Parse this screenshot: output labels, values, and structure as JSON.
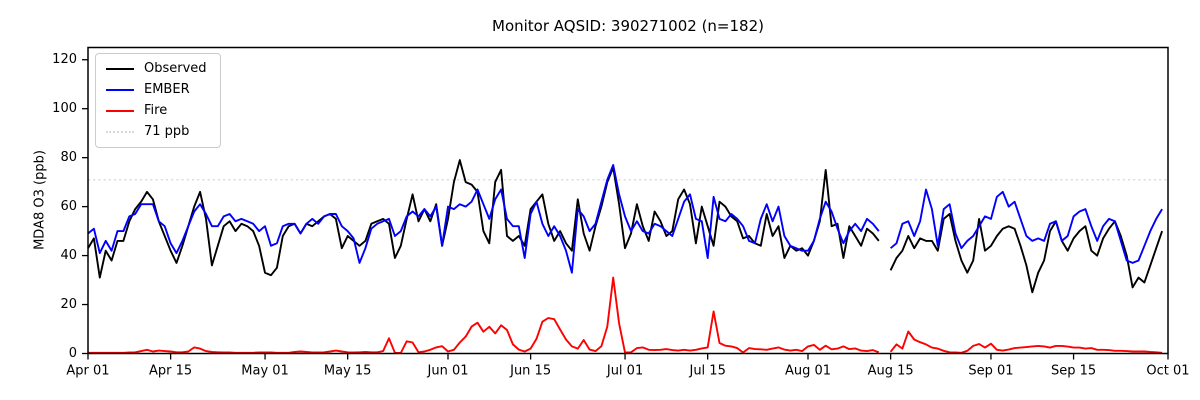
{
  "chart_data": {
    "type": "line",
    "title": "Monitor AQSID: 390271002 (n=182)",
    "xlabel": "",
    "ylabel": "MDA8 O3 (ppb)",
    "ylim": [
      0,
      125
    ],
    "y_ticks": [
      0,
      20,
      40,
      60,
      80,
      100,
      120
    ],
    "x_axis": {
      "start_date": "Apr 01",
      "end_date": "Oct 01",
      "total_days": 183,
      "tick_days": [
        0,
        14,
        30,
        44,
        61,
        75,
        91,
        105,
        122,
        136,
        153,
        167,
        183
      ],
      "tick_labels": [
        "Apr 01",
        "Apr 15",
        "May 01",
        "May 15",
        "Jun 01",
        "Jun 15",
        "Jul 01",
        "Jul 15",
        "Aug 01",
        "Aug 15",
        "Sep 01",
        "Sep 15",
        "Oct 01"
      ]
    },
    "grid": "off",
    "legend_position": "upper left",
    "reference_line": {
      "value": 71,
      "label": "71 ppb",
      "color": "#d9d9d9",
      "style": "dotted"
    },
    "series": [
      {
        "name": "Observed",
        "color": "#000000",
        "values": [
          43,
          47,
          31,
          42,
          38,
          46,
          46,
          54,
          59,
          62,
          66,
          63,
          54,
          48,
          42,
          37,
          44,
          52,
          60,
          66,
          55,
          36,
          44,
          52,
          54,
          50,
          53,
          52,
          50,
          44,
          33,
          32,
          35,
          48,
          52,
          53,
          49,
          53,
          52,
          54,
          56,
          57,
          55,
          43,
          48,
          46,
          44,
          46,
          53,
          54,
          55,
          53,
          39,
          44,
          55,
          65,
          54,
          59,
          54,
          61,
          44,
          55,
          70,
          79,
          70,
          69,
          66,
          50,
          45,
          70,
          75,
          48,
          46,
          48,
          44,
          59,
          62,
          65,
          53,
          46,
          50,
          45,
          42,
          63,
          49,
          42,
          52,
          60,
          70,
          76,
          61,
          43,
          49,
          61,
          52,
          46,
          58,
          54,
          48,
          50,
          63,
          67,
          61,
          45,
          60,
          52,
          44,
          62,
          60,
          56,
          54,
          47,
          48,
          45,
          44,
          57,
          48,
          52,
          39,
          44,
          42,
          43,
          40,
          46,
          54,
          75,
          52,
          53,
          39,
          52,
          48,
          44,
          51,
          49,
          46,
          null,
          34,
          39,
          42,
          48,
          43,
          47,
          46,
          46,
          42,
          55,
          57,
          46,
          38,
          33,
          38,
          55,
          42,
          44,
          48,
          51,
          52,
          51,
          44,
          36,
          25,
          33,
          38,
          50,
          54,
          46,
          42,
          47,
          50,
          52,
          42,
          40,
          47,
          51,
          54,
          48,
          40,
          27,
          31,
          29,
          36,
          43,
          50
        ]
      },
      {
        "name": "EMBER",
        "color": "#0000ff",
        "values": [
          49,
          51,
          41,
          46,
          42,
          50,
          50,
          56,
          57,
          61,
          61,
          61,
          54,
          52,
          45,
          41,
          46,
          52,
          58,
          61,
          57,
          52,
          52,
          56,
          57,
          54,
          55,
          54,
          53,
          50,
          52,
          44,
          45,
          52,
          53,
          53,
          49,
          53,
          55,
          53,
          56,
          57,
          57,
          52,
          50,
          47,
          37,
          43,
          51,
          53,
          54,
          55,
          48,
          50,
          56,
          58,
          56,
          59,
          56,
          60,
          44,
          60,
          59,
          61,
          60,
          62,
          67,
          61,
          55,
          63,
          67,
          55,
          52,
          52,
          39,
          57,
          62,
          53,
          48,
          52,
          48,
          42,
          33,
          59,
          56,
          50,
          53,
          62,
          71,
          77,
          65,
          56,
          50,
          54,
          50,
          49,
          53,
          52,
          50,
          48,
          55,
          62,
          65,
          55,
          54,
          39,
          64,
          55,
          54,
          57,
          55,
          52,
          46,
          45,
          55,
          61,
          54,
          60,
          48,
          44,
          43,
          42,
          42,
          46,
          55,
          62,
          58,
          51,
          45,
          50,
          53,
          50,
          55,
          53,
          50,
          null,
          43,
          45,
          53,
          54,
          48,
          54,
          67,
          59,
          44,
          59,
          61,
          49,
          43,
          46,
          48,
          52,
          56,
          55,
          64,
          66,
          60,
          62,
          55,
          48,
          46,
          47,
          46,
          53,
          54,
          46,
          48,
          56,
          58,
          59,
          52,
          46,
          52,
          55,
          54,
          46,
          38,
          37,
          38,
          44,
          50,
          55,
          59
        ]
      },
      {
        "name": "Fire",
        "color": "#ff0000",
        "values": [
          0.3,
          0.3,
          0.3,
          0.3,
          0.3,
          0.3,
          0.3,
          0.4,
          0.5,
          1.0,
          1.5,
          0.8,
          1.2,
          1.0,
          0.8,
          0.5,
          0.5,
          0.8,
          2.5,
          2.0,
          1.0,
          0.6,
          0.5,
          0.4,
          0.4,
          0.3,
          0.3,
          0.3,
          0.3,
          0.4,
          0.4,
          0.4,
          0.3,
          0.3,
          0.3,
          0.6,
          0.8,
          0.6,
          0.4,
          0.4,
          0.5,
          0.8,
          1.2,
          0.8,
          0.5,
          0.4,
          0.5,
          0.6,
          0.5,
          0.5,
          1.0,
          6.2,
          0.3,
          0.2,
          5.0,
          4.5,
          0.5,
          0.8,
          1.5,
          2.5,
          3.0,
          0.8,
          1.5,
          4.5,
          6.9,
          11.0,
          12.6,
          8.9,
          10.9,
          8.2,
          11.5,
          9.6,
          3.7,
          1.6,
          0.8,
          2.0,
          6.0,
          13.0,
          14.5,
          14.0,
          9.8,
          5.7,
          2.9,
          2.0,
          5.5,
          1.6,
          1.0,
          3.0,
          11.0,
          31.0,
          12.3,
          0.4,
          0.5,
          2.2,
          2.5,
          1.5,
          1.4,
          1.5,
          1.8,
          1.4,
          1.2,
          1.5,
          1.2,
          1.5,
          2.1,
          2.5,
          17.2,
          4.3,
          3.2,
          2.9,
          2.2,
          0.4,
          2.2,
          1.8,
          1.7,
          1.5,
          2.0,
          2.5,
          1.6,
          1.2,
          1.5,
          1.0,
          2.9,
          3.5,
          1.5,
          3.2,
          1.7,
          2.0,
          2.9,
          1.8,
          2.1,
          1.2,
          1.0,
          1.4,
          0.5,
          null,
          0.7,
          3.7,
          2.0,
          9.0,
          5.7,
          4.6,
          3.7,
          2.4,
          2.0,
          1.1,
          0.5,
          0.4,
          0.3,
          1.1,
          3.1,
          3.9,
          2.4,
          4.0,
          1.5,
          1.2,
          1.6,
          2.2,
          2.4,
          2.6,
          2.9,
          3.1,
          2.9,
          2.4,
          3.1,
          3.1,
          2.8,
          2.4,
          2.4,
          2.0,
          2.2,
          1.5,
          1.5,
          1.4,
          1.1,
          1.1,
          1.0,
          0.8,
          0.8,
          0.8,
          0.6,
          0.5,
          0.3
        ]
      }
    ]
  }
}
